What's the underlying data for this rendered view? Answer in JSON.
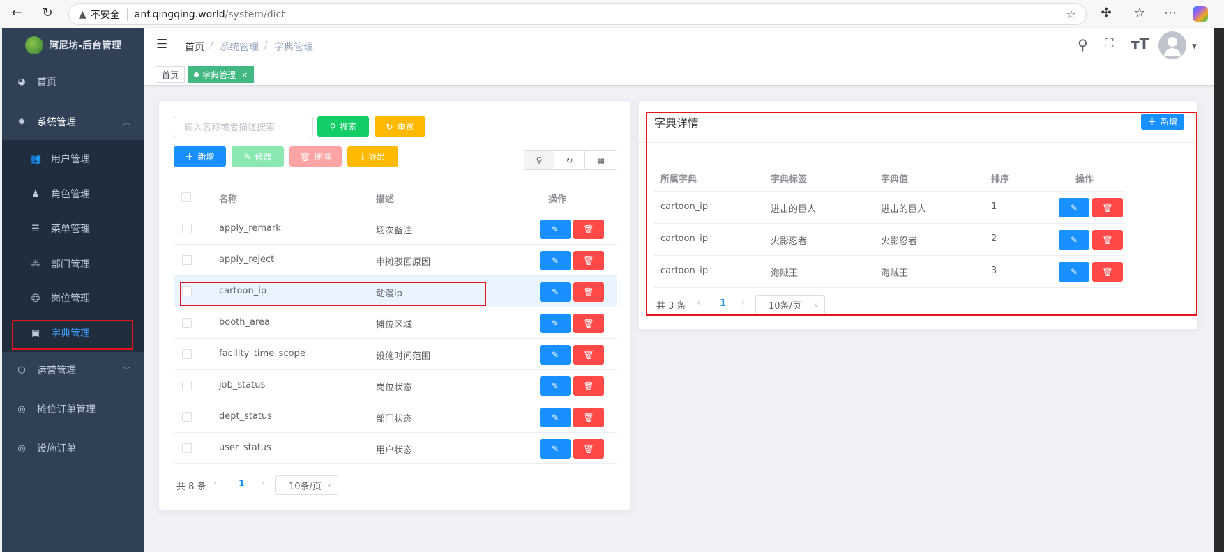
{
  "browser": {
    "url_warning": "不安全",
    "url_host": "anf.qingqing.world",
    "url_path": "/system/dict"
  },
  "sidebar": {
    "title": "阿尼坊-后台管理",
    "items": [
      {
        "label": "首页",
        "icon": "dashboard-icon"
      },
      {
        "label": "系统管理",
        "icon": "gear-icon",
        "expanded": true
      },
      {
        "label": "用户管理",
        "icon": "users-icon"
      },
      {
        "label": "角色管理",
        "icon": "role-icon"
      },
      {
        "label": "菜单管理",
        "icon": "menu-list-icon"
      },
      {
        "label": "部门管理",
        "icon": "tree-icon"
      },
      {
        "label": "岗位管理",
        "icon": "post-icon"
      },
      {
        "label": "字典管理",
        "icon": "dict-icon",
        "active": true
      },
      {
        "label": "运营管理",
        "icon": "cube-icon"
      },
      {
        "label": "摊位订单管理",
        "icon": "order-icon"
      },
      {
        "label": "设施订单",
        "icon": "order-icon"
      }
    ]
  },
  "header": {
    "breadcrumb": [
      "首页",
      "系统管理",
      "字典管理"
    ]
  },
  "tags": {
    "home": "首页",
    "active": "字典管理",
    "close": "×"
  },
  "left": {
    "search_placeholder": "输入名称或者描述搜索",
    "search_btn": "搜索",
    "reset_btn": "重置",
    "add_btn": "新增",
    "edit_btn": "修改",
    "delete_btn": "删除",
    "export_btn": "导出",
    "columns": [
      "名称",
      "描述",
      "操作"
    ],
    "rows": [
      {
        "name": "apply_remark",
        "desc": "场次备注"
      },
      {
        "name": "apply_reject",
        "desc": "申摊驳回原因"
      },
      {
        "name": "cartoon_ip",
        "desc": "动漫ip",
        "selected": true
      },
      {
        "name": "booth_area",
        "desc": "摊位区域"
      },
      {
        "name": "facility_time_scope",
        "desc": "设施时间范围"
      },
      {
        "name": "job_status",
        "desc": "岗位状态"
      },
      {
        "name": "dept_status",
        "desc": "部门状态"
      },
      {
        "name": "user_status",
        "desc": "用户状态"
      }
    ],
    "pagination": {
      "total": "共 8 条",
      "page": "1",
      "size": "10条/页"
    }
  },
  "right": {
    "title": "字典详情",
    "add_btn": "新增",
    "columns": [
      "所属字典",
      "字典标签",
      "字典值",
      "排序",
      "操作"
    ],
    "rows": [
      {
        "dict": "cartoon_ip",
        "label": "进击的巨人",
        "value": "进击的巨人",
        "sort": "1"
      },
      {
        "dict": "cartoon_ip",
        "label": "火影忍者",
        "value": "火影忍者",
        "sort": "2"
      },
      {
        "dict": "cartoon_ip",
        "label": "海贼王",
        "value": "海贼王",
        "sort": "3"
      }
    ],
    "pagination": {
      "total": "共 3 条",
      "page": "1",
      "size": "10条/页"
    }
  },
  "colors": {
    "sidebar": "#304156",
    "primary": "#1890ff",
    "success": "#13ce66",
    "warning": "#ffba00",
    "danger": "#ff4949",
    "tag": "#42b983",
    "highlight": "#e5141c"
  }
}
